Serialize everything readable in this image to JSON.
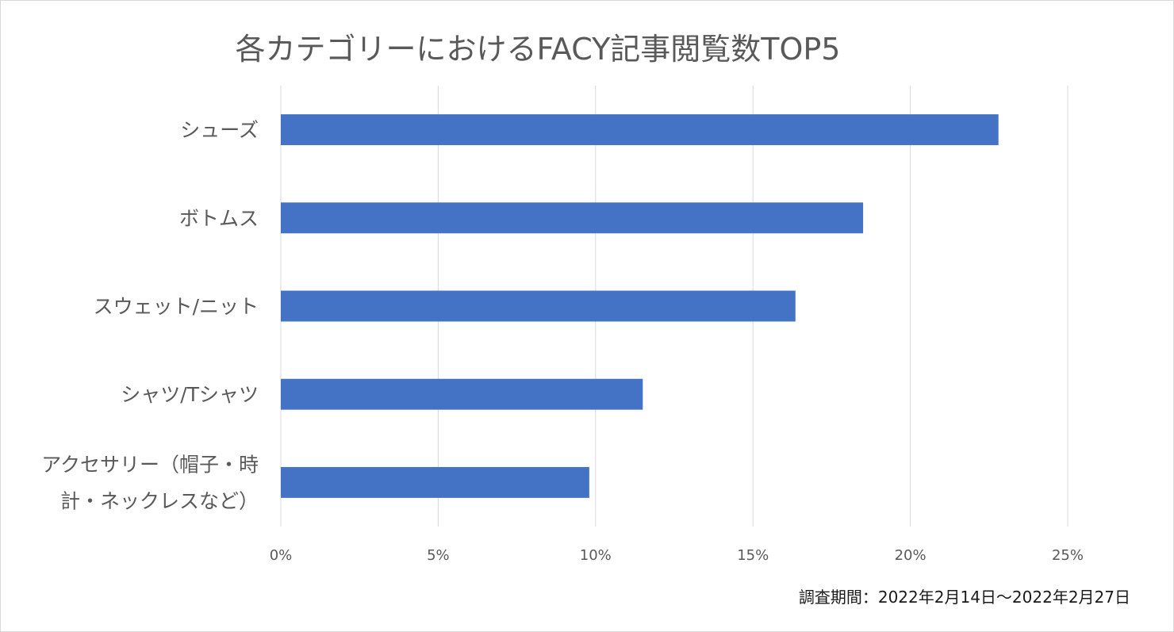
{
  "chart_data": {
    "type": "bar",
    "orientation": "horizontal",
    "title": "各カテゴリーにおけるFACY記事閲覧数TOP5",
    "categories": [
      [
        "シューズ"
      ],
      [
        "ボトムス"
      ],
      [
        "スウェット/ニット"
      ],
      [
        "シャツ/Tシャツ"
      ],
      [
        "アクセサリー（帽子・時",
        "計・ネックレスなど）"
      ]
    ],
    "values": [
      22.8,
      18.5,
      16.35,
      11.5,
      9.8
    ],
    "value_unit": "%",
    "xlim": [
      0,
      25
    ],
    "xticks": [
      0,
      5,
      10,
      15,
      20,
      25
    ],
    "xtick_labels": [
      "0%",
      "5%",
      "10%",
      "15%",
      "20%",
      "25%"
    ],
    "grid": "vertical",
    "legend": "none",
    "bar_color": "#4472c4",
    "grid_color": "#d9d9d9",
    "text_color": "#595959",
    "note": "調査期間：2022年2月14日～2022年2月27日"
  }
}
